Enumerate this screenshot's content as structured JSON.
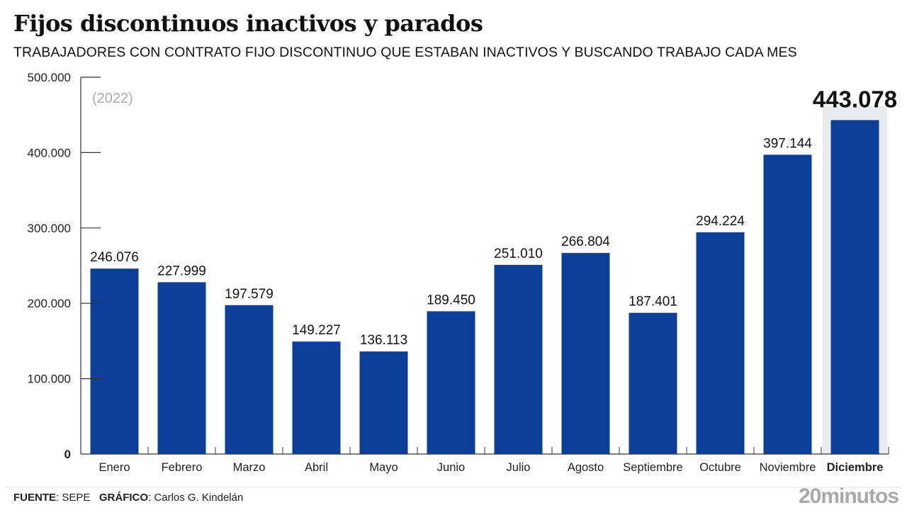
{
  "header": {
    "title": "Fijos discontinuos inactivos y parados",
    "subtitle": "TRABAJADORES CON CONTRATO FIJO DISCONTINUO QUE ESTABAN INACTIVOS Y BUSCANDO TRABAJO CADA MES"
  },
  "footer": {
    "source_label": "FUENTE",
    "source_value": "SEPE",
    "graphic_label": "GRÁFICO",
    "graphic_value": "Carlos G. Kindelán",
    "brand": "20minutos"
  },
  "colors": {
    "bar": "#0d3f99",
    "highlight_bg": "#e9ebef",
    "axis": "#333333",
    "annotation": "#aaaaaa"
  },
  "chart_data": {
    "type": "bar",
    "title": "Fijos discontinuos inactivos y parados",
    "subtitle": "TRABAJADORES CON CONTRATO FIJO DISCONTINUO QUE ESTABAN INACTIVOS Y BUSCANDO TRABAJO CADA MES",
    "annotation": "(2022)",
    "xlabel": "",
    "ylabel": "",
    "categories": [
      "Enero",
      "Febrero",
      "Marzo",
      "Abril",
      "Mayo",
      "Junio",
      "Julio",
      "Agosto",
      "Septiembre",
      "Octubre",
      "Noviembre",
      "Diciembre"
    ],
    "values": [
      246076,
      227999,
      197579,
      149227,
      136113,
      189450,
      251010,
      266804,
      187401,
      294224,
      397144,
      443078
    ],
    "value_labels": [
      "246.076",
      "227.999",
      "197.579",
      "149.227",
      "136.113",
      "189.450",
      "251.010",
      "266.804",
      "187.401",
      "294.224",
      "397.144",
      "443.078"
    ],
    "highlighted_category": "Diciembre",
    "ylim": [
      0,
      500000
    ],
    "yticks": [
      0,
      100000,
      200000,
      300000,
      400000,
      500000
    ],
    "ytick_labels": [
      "0",
      "100.000",
      "200.000",
      "300.000",
      "400.000",
      "500.000"
    ],
    "grid": false,
    "legend": "none"
  }
}
